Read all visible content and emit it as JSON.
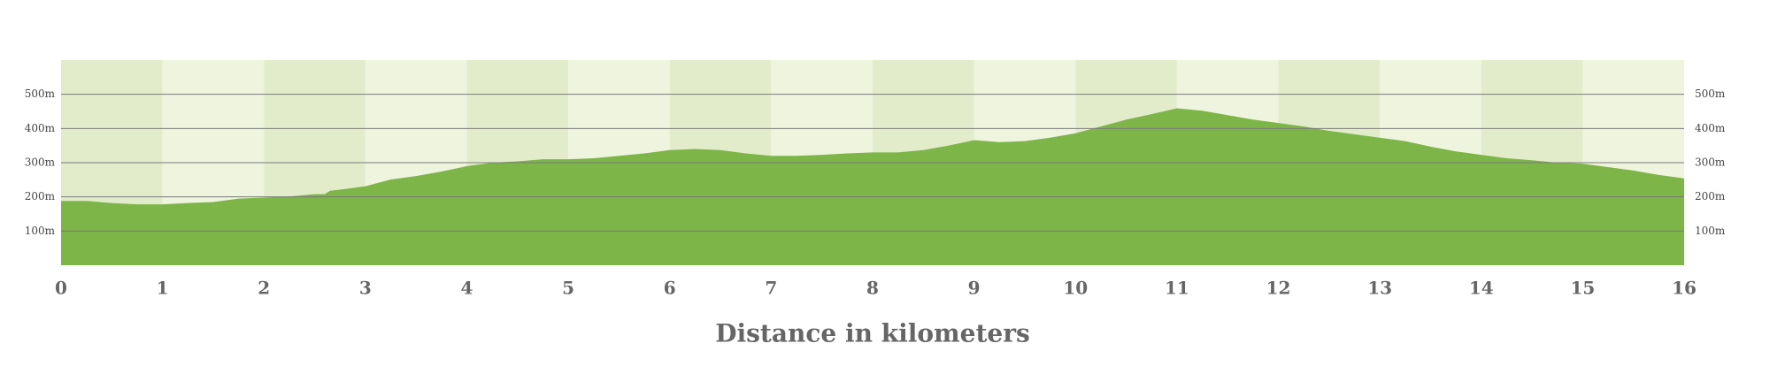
{
  "chart_data": {
    "type": "area",
    "x_label": "Distance in kilometers",
    "x": [
      0,
      0.25,
      0.5,
      0.75,
      1,
      1.25,
      1.5,
      1.75,
      2,
      2.25,
      2.5,
      2.6,
      2.65,
      2.75,
      3,
      3.25,
      3.5,
      3.75,
      4,
      4.25,
      4.5,
      4.75,
      5,
      5.25,
      5.5,
      5.75,
      6,
      6.25,
      6.5,
      6.75,
      7,
      7.25,
      7.5,
      7.75,
      8,
      8.25,
      8.5,
      8.75,
      9,
      9.25,
      9.5,
      9.75,
      10,
      10.25,
      10.5,
      10.75,
      11,
      11.25,
      11.5,
      11.75,
      12,
      12.25,
      12.5,
      12.75,
      13,
      13.25,
      13.5,
      13.75,
      14,
      14.25,
      14.5,
      14.75,
      15,
      15.25,
      15.5,
      15.75,
      16
    ],
    "y": [
      188,
      188,
      182,
      178,
      178,
      182,
      185,
      195,
      198,
      201,
      208,
      208,
      218,
      221,
      231,
      251,
      261,
      274,
      290,
      300,
      304,
      310,
      310,
      313,
      320,
      327,
      337,
      340,
      337,
      327,
      320,
      320,
      323,
      327,
      330,
      330,
      337,
      350,
      366,
      360,
      363,
      373,
      386,
      406,
      426,
      442,
      459,
      452,
      439,
      426,
      416,
      406,
      393,
      383,
      373,
      363,
      347,
      333,
      323,
      313,
      307,
      300,
      297,
      287,
      277,
      264,
      254
    ],
    "color": "#7db548",
    "xlim": [
      0,
      16
    ],
    "xticks": [
      0,
      1,
      2,
      3,
      4,
      5,
      6,
      7,
      8,
      9,
      10,
      11,
      12,
      13,
      14,
      15,
      16
    ],
    "ylim": [
      0,
      600
    ],
    "yticks": [
      {
        "value": 100,
        "label": "100m"
      },
      {
        "value": 200,
        "label": "200m"
      },
      {
        "value": 300,
        "label": "300m"
      },
      {
        "value": 400,
        "label": "400m"
      },
      {
        "value": 500,
        "label": "500m"
      }
    ],
    "grid": true
  }
}
